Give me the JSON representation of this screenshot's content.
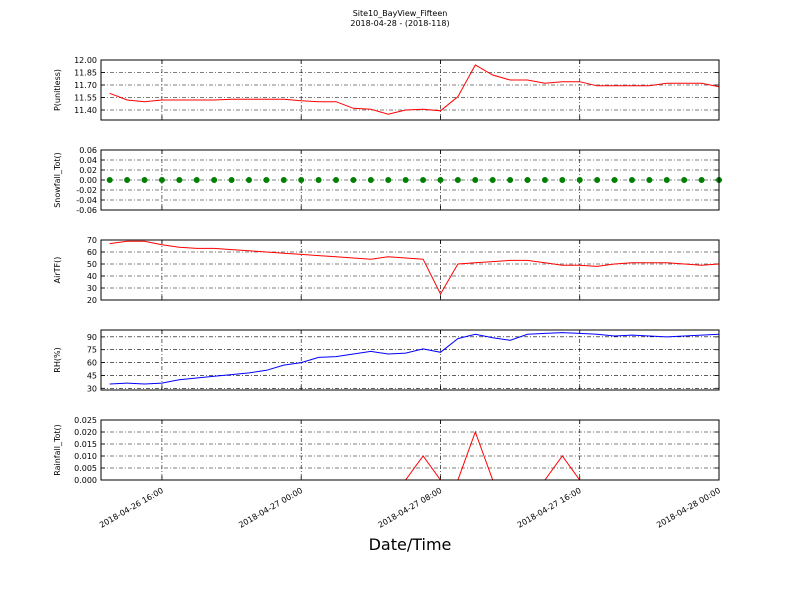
{
  "chart_data": [
    {
      "type": "line",
      "title": "Site10_BayView_Fifteen",
      "subtitle": "2018-04-28 - (2018-118)",
      "ylabel": "P(unitless)",
      "color": "#ff0000",
      "values": [
        11.6,
        11.52,
        11.5,
        11.52,
        11.52,
        11.52,
        11.52,
        11.53,
        11.53,
        11.53,
        11.53,
        11.51,
        11.5,
        11.5,
        11.42,
        11.41,
        11.35,
        11.4,
        11.41,
        11.39,
        11.56,
        11.94,
        11.82,
        11.76,
        11.76,
        11.72,
        11.74,
        11.74,
        11.69,
        11.69,
        11.69,
        11.69,
        11.72,
        11.72,
        11.72,
        11.68
      ],
      "ylim": [
        11.28,
        12.0
      ],
      "yticks": [
        {
          "value": 12.0,
          "label": "12.00"
        },
        11.85,
        {
          "value": 11.7,
          "label": "11.70"
        },
        11.55,
        {
          "value": 11.4,
          "label": "11.40"
        }
      ],
      "grid": true
    },
    {
      "type": "scatter",
      "ylabel": "Snowfall_Tot()",
      "color": "#008000",
      "values": [
        0,
        0,
        0,
        0,
        0,
        0,
        0,
        0,
        0,
        0,
        0,
        0,
        0,
        0,
        0,
        0,
        0,
        0,
        0,
        0,
        0,
        0,
        0,
        0,
        0,
        0,
        0,
        0,
        0,
        0,
        0,
        0,
        0,
        0,
        0,
        0
      ],
      "ylim": [
        -0.06,
        0.06
      ],
      "yticks": [
        0.06,
        0.04,
        0.02,
        {
          "value": 0,
          "label": "0.00"
        },
        -0.02,
        -0.04,
        -0.06
      ],
      "grid": true
    },
    {
      "type": "line",
      "ylabel": "AirTF()",
      "color": "#ff0000",
      "values": [
        67,
        69,
        69,
        66,
        64,
        63,
        63,
        62,
        61,
        60,
        59,
        58,
        57,
        56,
        55,
        54,
        56,
        55,
        54,
        25,
        50,
        51,
        52,
        53,
        53,
        51,
        49,
        49,
        48,
        50,
        51,
        51,
        51,
        50,
        49,
        50
      ],
      "ylim": [
        20,
        70
      ],
      "yticks": [
        70,
        60,
        50,
        40,
        30,
        20
      ],
      "grid": true
    },
    {
      "type": "line",
      "ylabel": "RH(%)",
      "color": "#0000ff",
      "values": [
        35,
        36,
        35,
        36,
        40,
        42,
        44,
        46,
        48,
        51,
        57,
        60,
        66,
        67,
        70,
        73,
        70,
        71,
        76,
        72,
        88,
        93,
        89,
        86,
        93,
        94,
        95,
        94,
        93,
        91,
        92,
        91,
        90,
        91,
        92,
        93
      ],
      "ylim": [
        28,
        98
      ],
      "yticks": [
        90,
        75,
        60,
        45,
        30
      ],
      "grid": true
    },
    {
      "type": "line",
      "ylabel": "Rainfall_Tot()",
      "xlabel": "Date/Time",
      "color": "#ff0000",
      "x": [
        "2018-04-26 13:00",
        "2018-04-26 14:00",
        "2018-04-26 15:00",
        "2018-04-26 16:00",
        "2018-04-26 17:00",
        "2018-04-26 18:00",
        "2018-04-26 19:00",
        "2018-04-26 20:00",
        "2018-04-26 21:00",
        "2018-04-26 22:00",
        "2018-04-26 23:00",
        "2018-04-27 00:00",
        "2018-04-27 01:00",
        "2018-04-27 02:00",
        "2018-04-27 03:00",
        "2018-04-27 04:00",
        "2018-04-27 05:00",
        "2018-04-27 06:00",
        "2018-04-27 07:00",
        "2018-04-27 08:00",
        "2018-04-27 09:00",
        "2018-04-27 10:00",
        "2018-04-27 11:00",
        "2018-04-27 12:00",
        "2018-04-27 13:00",
        "2018-04-27 14:00",
        "2018-04-27 15:00",
        "2018-04-27 16:00",
        "2018-04-27 17:00",
        "2018-04-27 18:00",
        "2018-04-27 19:00",
        "2018-04-27 20:00",
        "2018-04-27 21:00",
        "2018-04-27 22:00",
        "2018-04-27 23:00",
        "2018-04-28 00:00"
      ],
      "values": [
        0,
        0,
        0,
        0,
        0,
        0,
        0,
        0,
        0,
        0,
        0,
        0,
        0,
        0,
        0,
        0,
        0,
        0,
        0.01,
        0,
        0,
        0.02,
        0,
        0,
        0,
        0,
        0.01,
        0,
        0,
        0,
        0,
        0,
        0,
        0,
        0,
        0
      ],
      "xlim": [
        "2018-04-26 12:30",
        "2018-04-28 00:00"
      ],
      "xticks": [
        "2018-04-26 16:00",
        "2018-04-27 00:00",
        "2018-04-27 08:00",
        "2018-04-27 16:00",
        "2018-04-28 00:00"
      ],
      "ylim": [
        0,
        0.025
      ],
      "yticks": [
        0.025,
        {
          "value": 0.02,
          "label": "0.020"
        },
        0.015,
        {
          "value": 0.01,
          "label": "0.010"
        },
        0.005,
        {
          "value": 0,
          "label": "0.000"
        }
      ],
      "grid": true
    }
  ]
}
